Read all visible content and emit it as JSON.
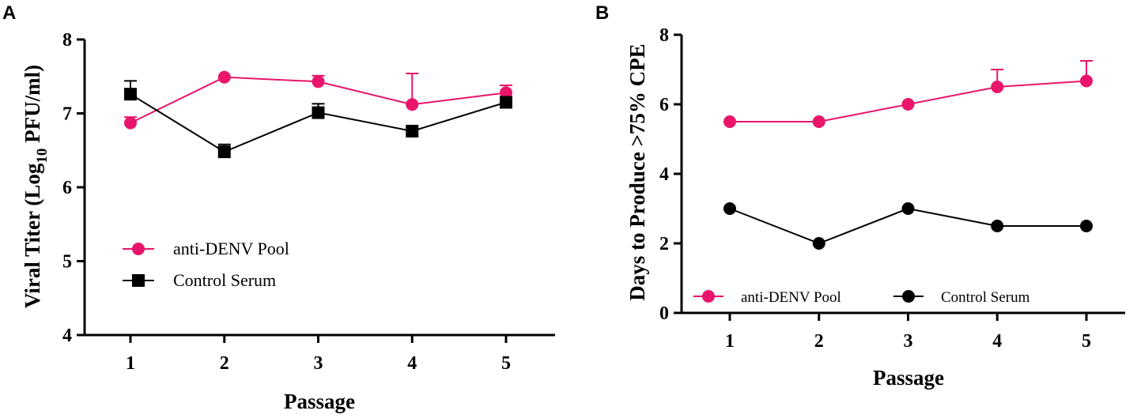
{
  "chart_data": [
    {
      "panel": "A",
      "type": "line",
      "categories": [
        "1",
        "2",
        "3",
        "4",
        "5"
      ],
      "xlabel": "Passage",
      "ylabel_parts": [
        "Viral Titer (Log",
        "10",
        " PFU/ml)"
      ],
      "ylim": [
        4,
        8
      ],
      "yticks": [
        "4",
        "5",
        "6",
        "7",
        "8"
      ],
      "grid": false,
      "legend_position": "lower-left",
      "series": [
        {
          "name": "anti-DENV Pool",
          "marker": "circle",
          "color": "#E8156B",
          "values": [
            6.87,
            7.49,
            7.43,
            7.12,
            7.28
          ],
          "errors": [
            0.08,
            0.0,
            0.08,
            0.42,
            0.1
          ]
        },
        {
          "name": "Control Serum",
          "marker": "square",
          "color": "#000000",
          "values": [
            7.26,
            6.48,
            7.01,
            6.76,
            7.15
          ],
          "errors": [
            0.18,
            0.1,
            0.12,
            0.0,
            0.05
          ]
        }
      ]
    },
    {
      "panel": "B",
      "type": "line",
      "categories": [
        "1",
        "2",
        "3",
        "4",
        "5"
      ],
      "xlabel": "Passage",
      "ylabel": "Days to Produce >75%  CPE",
      "ylim": [
        0,
        8
      ],
      "yticks": [
        "0",
        "2",
        "4",
        "6",
        "8"
      ],
      "grid": false,
      "legend_position": "bottom",
      "series": [
        {
          "name": "anti-DENV Pool",
          "marker": "circle",
          "color": "#E8156B",
          "values": [
            5.5,
            5.5,
            6.0,
            6.5,
            6.67
          ],
          "errors": [
            0,
            0,
            0,
            0.5,
            0.58
          ]
        },
        {
          "name": "Control Serum",
          "marker": "circle",
          "color": "#000000",
          "values": [
            3.0,
            2.0,
            3.0,
            2.5,
            2.5
          ],
          "errors": [
            0,
            0,
            0,
            0,
            0
          ]
        }
      ]
    }
  ]
}
